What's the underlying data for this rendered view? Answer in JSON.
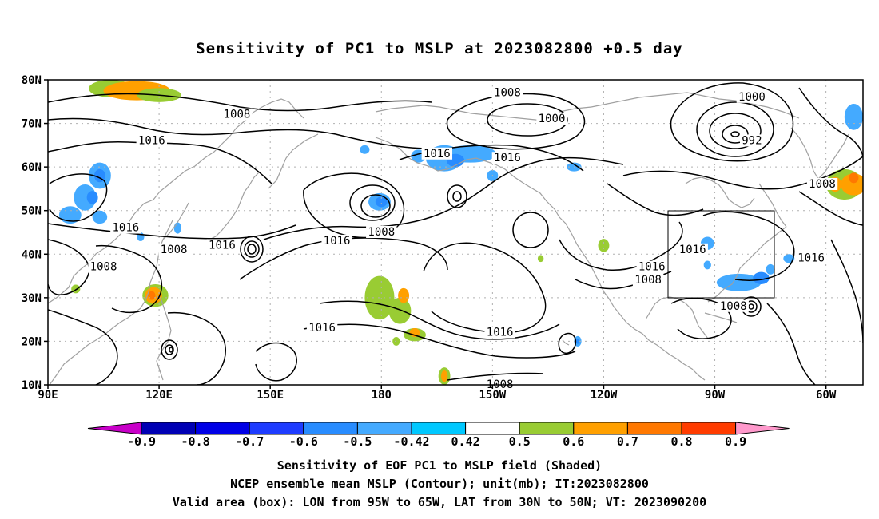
{
  "title": "Sensitivity of PC1 to MSLP at 2023082800 +0.5 day",
  "captions": {
    "line1": "Sensitivity of EOF PC1 to MSLP field (Shaded)",
    "line2": "NCEP ensemble mean MSLP (Contour); unit(mb); IT:2023082800",
    "line3": "Valid area (box): LON from 95W to 65W, LAT from 30N to 50N; VT: 2023090200"
  },
  "map": {
    "lon_range": [
      90,
      310
    ],
    "lat_range": [
      10,
      80
    ],
    "lat_ticks": [
      "80N",
      "70N",
      "60N",
      "50N",
      "40N",
      "30N",
      "20N",
      "10N"
    ],
    "lon_ticks": [
      "90E",
      "120E",
      "150E",
      "180",
      "150W",
      "120W",
      "90W",
      "60W"
    ],
    "valid_box": {
      "lon_min_w": 95,
      "lon_max_w": 65,
      "lat_min": 30,
      "lat_max": 50
    },
    "contour_labels": [
      {
        "text": "1008",
        "lon": 141,
        "lat": 72
      },
      {
        "text": "1016",
        "lon": 118,
        "lat": 66
      },
      {
        "text": "1016",
        "lon": 111,
        "lat": 46
      },
      {
        "text": "1016",
        "lon": 137,
        "lat": 42
      },
      {
        "text": "1008",
        "lon": 124,
        "lat": 41
      },
      {
        "text": "1008",
        "lon": 105,
        "lat": 37
      },
      {
        "text": "1016",
        "lon": 168,
        "lat": 43
      },
      {
        "text": "1008",
        "lon": 180,
        "lat": 45
      },
      {
        "text": "1016",
        "lon": 164,
        "lat": 23
      },
      {
        "text": "1016",
        "lon": 195,
        "lat": 63
      },
      {
        "text": "1016",
        "lon": 214,
        "lat": 62
      },
      {
        "text": "1008",
        "lon": 214,
        "lat": 77
      },
      {
        "text": "1000",
        "lon": 226,
        "lat": 71
      },
      {
        "text": "1016",
        "lon": 212,
        "lat": 22
      },
      {
        "text": "1008",
        "lon": 212,
        "lat": 10
      },
      {
        "text": "1016",
        "lon": 253,
        "lat": 37
      },
      {
        "text": "1008",
        "lon": 252,
        "lat": 34
      },
      {
        "text": "1016",
        "lon": 264,
        "lat": 41
      },
      {
        "text": "1000",
        "lon": 280,
        "lat": 76
      },
      {
        "text": "992",
        "lon": 280,
        "lat": 66
      },
      {
        "text": "1008",
        "lon": 299,
        "lat": 56
      },
      {
        "text": "1016",
        "lon": 296,
        "lat": 39
      },
      {
        "text": "1008",
        "lon": 275,
        "lat": 28
      }
    ],
    "shaded_areas": [
      {
        "lon": 107,
        "lat": 78,
        "rx": 6,
        "ry": 2,
        "value": 0.5
      },
      {
        "lon": 114,
        "lat": 77.5,
        "rx": 9,
        "ry": 2.2,
        "value": 0.6
      },
      {
        "lon": 120,
        "lat": 76.5,
        "rx": 6,
        "ry": 1.6,
        "value": 0.5
      },
      {
        "lon": 104,
        "lat": 58,
        "rx": 3,
        "ry": 3,
        "value": -0.5
      },
      {
        "lon": 104,
        "lat": 58,
        "rx": 1.5,
        "ry": 1.5,
        "value": -0.6
      },
      {
        "lon": 100,
        "lat": 53,
        "rx": 3,
        "ry": 3,
        "value": -0.5
      },
      {
        "lon": 102,
        "lat": 53,
        "rx": 1.5,
        "ry": 1.5,
        "value": -0.6
      },
      {
        "lon": 96,
        "lat": 49,
        "rx": 3,
        "ry": 2,
        "value": -0.5
      },
      {
        "lon": 104,
        "lat": 48.5,
        "rx": 2,
        "ry": 1.5,
        "value": -0.5
      },
      {
        "lon": 115,
        "lat": 44,
        "rx": 1,
        "ry": 1,
        "value": -0.5
      },
      {
        "lon": 125,
        "lat": 46,
        "rx": 1,
        "ry": 1.3,
        "value": -0.5
      },
      {
        "lon": 119,
        "lat": 30.5,
        "rx": 3.5,
        "ry": 2.6,
        "value": 0.5
      },
      {
        "lon": 118.5,
        "lat": 30.5,
        "rx": 2.3,
        "ry": 1.9,
        "value": 0.6
      },
      {
        "lon": 118,
        "lat": 30.5,
        "rx": 1,
        "ry": 1,
        "value": 0.7
      },
      {
        "lon": 97.5,
        "lat": 32,
        "rx": 1.2,
        "ry": 1,
        "value": 0.5
      },
      {
        "lon": 179.5,
        "lat": 52,
        "rx": 3,
        "ry": 2,
        "value": -0.5
      },
      {
        "lon": 180,
        "lat": 52,
        "rx": 1.6,
        "ry": 1.2,
        "value": -0.6
      },
      {
        "lon": 190,
        "lat": 62.5,
        "rx": 2,
        "ry": 1.5,
        "value": -0.5
      },
      {
        "lon": 197,
        "lat": 62,
        "rx": 5,
        "ry": 3,
        "value": -0.5
      },
      {
        "lon": 204,
        "lat": 63,
        "rx": 7,
        "ry": 2,
        "value": -0.5
      },
      {
        "lon": 200,
        "lat": 61.5,
        "rx": 2.4,
        "ry": 1.5,
        "value": -0.6
      },
      {
        "lon": 210,
        "lat": 58,
        "rx": 1.5,
        "ry": 1.3,
        "value": -0.5
      },
      {
        "lon": 175.5,
        "lat": 64,
        "rx": 1.3,
        "ry": 1,
        "value": -0.5
      },
      {
        "lon": 232,
        "lat": 60,
        "rx": 2,
        "ry": 1,
        "value": -0.5
      },
      {
        "lon": 179.5,
        "lat": 30,
        "rx": 4,
        "ry": 5,
        "value": 0.5
      },
      {
        "lon": 185,
        "lat": 27,
        "rx": 3,
        "ry": 3,
        "value": 0.5
      },
      {
        "lon": 186,
        "lat": 30.5,
        "rx": 1.5,
        "ry": 1.7,
        "value": 0.6
      },
      {
        "lon": 189,
        "lat": 21.5,
        "rx": 3,
        "ry": 1.5,
        "value": 0.5
      },
      {
        "lon": 189,
        "lat": 22,
        "rx": 1.4,
        "ry": 1,
        "value": 0.6
      },
      {
        "lon": 184,
        "lat": 20,
        "rx": 1,
        "ry": 1,
        "value": 0.5
      },
      {
        "lon": 197,
        "lat": 12,
        "rx": 1.6,
        "ry": 2,
        "value": 0.5
      },
      {
        "lon": 197,
        "lat": 12,
        "rx": 0.9,
        "ry": 1.3,
        "value": 0.6
      },
      {
        "lon": 240,
        "lat": 42,
        "rx": 1.5,
        "ry": 1.5,
        "value": 0.5
      },
      {
        "lon": 223,
        "lat": 39,
        "rx": 0.8,
        "ry": 0.8,
        "value": 0.5
      },
      {
        "lon": 233,
        "lat": 20,
        "rx": 1,
        "ry": 1.2,
        "value": -0.5
      },
      {
        "lon": 233,
        "lat": 20,
        "rx": 0.5,
        "ry": 0.6,
        "value": -0.6
      },
      {
        "lon": 268,
        "lat": 42.5,
        "rx": 1.8,
        "ry": 1.5,
        "value": -0.5
      },
      {
        "lon": 268,
        "lat": 37.5,
        "rx": 1,
        "ry": 1,
        "value": -0.5
      },
      {
        "lon": 276.5,
        "lat": 33.5,
        "rx": 6,
        "ry": 2,
        "value": -0.5
      },
      {
        "lon": 285,
        "lat": 36.5,
        "rx": 1.2,
        "ry": 1.2,
        "value": -0.5
      },
      {
        "lon": 290,
        "lat": 39,
        "rx": 1.5,
        "ry": 1,
        "value": -0.5
      },
      {
        "lon": 282.5,
        "lat": 34.5,
        "rx": 2.2,
        "ry": 1.4,
        "value": -0.6
      },
      {
        "lon": 305,
        "lat": 56,
        "rx": 5,
        "ry": 3.5,
        "value": 0.5
      },
      {
        "lon": 307.5,
        "lat": 56,
        "rx": 3.5,
        "ry": 2.5,
        "value": 0.6
      },
      {
        "lon": 302.5,
        "lat": 56,
        "rx": 1.7,
        "ry": 1.7,
        "value": 0.6
      },
      {
        "lon": 307.5,
        "lat": 57.5,
        "rx": 1.3,
        "ry": 1.2,
        "value": 0.7
      },
      {
        "lon": 307.5,
        "lat": 71.5,
        "rx": 2.5,
        "ry": 3,
        "value": -0.5
      }
    ]
  },
  "colorbar": {
    "levels": [
      "-0.9",
      "-0.8",
      "-0.7",
      "-0.6",
      "-0.5",
      "-0.42",
      "0.42",
      "0.5",
      "0.6",
      "0.7",
      "0.8",
      "0.9"
    ],
    "colors": [
      "#c800c8",
      "#0000b4",
      "#0000e6",
      "#1e3cff",
      "#288cff",
      "#44aaff",
      "#00c8ff",
      "#ffffff",
      "#99cc33",
      "#ffa000",
      "#ff7800",
      "#ff3c00",
      "#ff0000",
      "#ff99cc"
    ]
  }
}
